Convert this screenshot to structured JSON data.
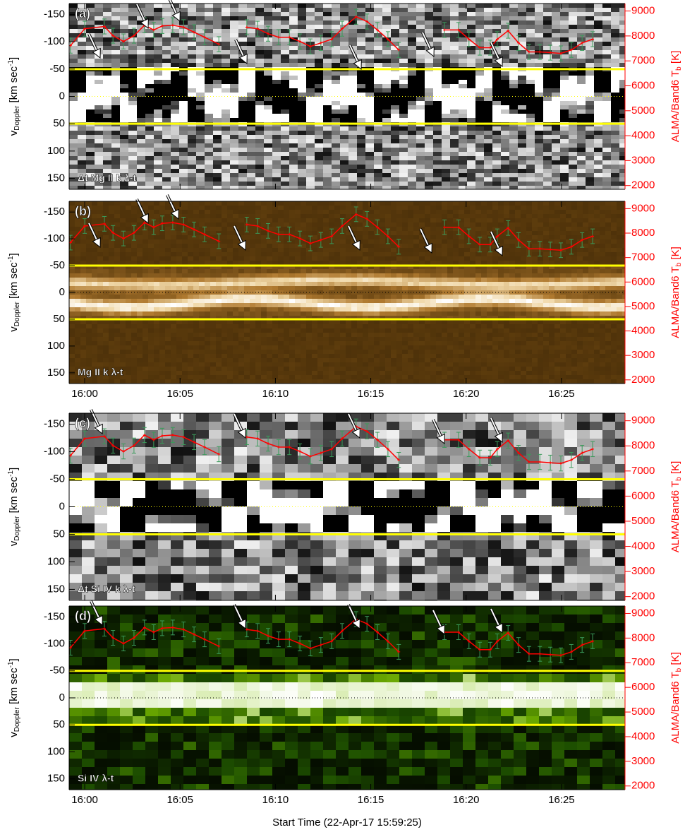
{
  "chart_data": [
    {
      "type": "line",
      "label": "(a)",
      "caption": "Δt Mg II k λ-t",
      "colormap": "gray",
      "ylabel": [
        "v",
        "Doppler",
        " [km sec",
        "-1",
        "]"
      ],
      "y2label": [
        "ALMA/Band6 T",
        "b",
        " [K]"
      ],
      "xlim": [
        -14,
        1735
      ],
      "xticks": [
        35,
        335,
        635,
        935,
        1235,
        1535
      ],
      "ylim": [
        170,
        -170
      ],
      "yticks": [
        -150,
        -100,
        -50,
        0,
        50,
        100,
        150
      ],
      "y2lim": [
        1850,
        9300
      ],
      "y2ticks": [
        2000,
        3000,
        4000,
        5000,
        6000,
        7000,
        8000,
        9000
      ],
      "hlines": [
        -50,
        50
      ],
      "hline_color": "#ffff00",
      "x": [
        -10,
        35,
        97,
        124,
        157,
        190,
        223,
        252,
        279,
        312,
        346,
        379,
        412,
        457,
        500,
        545,
        579,
        612,
        645,
        679,
        712,
        745,
        778,
        812,
        845,
        889,
        923,
        956,
        989,
        1023,
        1100,
        1167,
        1211,
        1244,
        1278,
        1311,
        1333,
        1367,
        1400,
        1433,
        1467,
        1500,
        1533,
        1566,
        1600,
        1633
      ],
      "series": [
        {
          "color": "#ff0000",
          "axis": "y2",
          "error": 300,
          "error_color": "#3a9a5a",
          "values": [
            7610,
            8290,
            8380,
            8010,
            7780,
            8010,
            8430,
            8240,
            8400,
            8430,
            8350,
            8150,
            7950,
            7670,
            null,
            8350,
            8290,
            8090,
            7950,
            7950,
            7780,
            7580,
            7720,
            7870,
            8290,
            8770,
            8580,
            8240,
            7870,
            7440,
            null,
            8240,
            8240,
            7870,
            7530,
            7530,
            7870,
            8210,
            7720,
            7360,
            7360,
            7330,
            7300,
            7440,
            7720,
            7870
          ]
        }
      ]
    },
    {
      "type": "line",
      "label": "(b)",
      "caption": "Mg II k λ-t",
      "colormap": "brown",
      "ylabel": [
        "v",
        "Doppler",
        " [km sec",
        "-1",
        "]"
      ],
      "y2label": [
        "ALMA/Band6 T",
        "b",
        " [K]"
      ],
      "xlim": [
        -14,
        1735
      ],
      "xticks": [
        {
          "value": 35,
          "label": "16:00"
        },
        {
          "value": 335,
          "label": "16:05"
        },
        {
          "value": 635,
          "label": "16:10"
        },
        {
          "value": 935,
          "label": "16:15"
        },
        {
          "value": 1235,
          "label": "16:20"
        },
        {
          "value": 1535,
          "label": "16:25"
        }
      ],
      "ylim": [
        170,
        -170
      ],
      "yticks": [
        -150,
        -100,
        -50,
        0,
        50,
        100,
        150
      ],
      "y2lim": [
        1850,
        9300
      ],
      "y2ticks": [
        2000,
        3000,
        4000,
        5000,
        6000,
        7000,
        8000,
        9000
      ],
      "hlines": [
        -50,
        50
      ],
      "hline_color": "#ffff00",
      "x": [
        -10,
        35,
        97,
        124,
        157,
        190,
        223,
        252,
        279,
        312,
        346,
        379,
        412,
        457,
        500,
        545,
        579,
        612,
        645,
        679,
        712,
        745,
        778,
        812,
        845,
        889,
        923,
        956,
        989,
        1023,
        1100,
        1167,
        1211,
        1244,
        1278,
        1311,
        1333,
        1367,
        1400,
        1433,
        1467,
        1500,
        1533,
        1566,
        1600,
        1633
      ],
      "series": [
        {
          "color": "#ff0000",
          "axis": "y2",
          "error": 300,
          "error_color": "#3a9a5a",
          "values": [
            7610,
            8290,
            8380,
            8010,
            7780,
            8010,
            8430,
            8240,
            8400,
            8430,
            8350,
            8150,
            7950,
            7670,
            null,
            8350,
            8290,
            8090,
            7950,
            7950,
            7780,
            7580,
            7720,
            7870,
            8290,
            8770,
            8580,
            8240,
            7870,
            7440,
            null,
            8240,
            8240,
            7870,
            7530,
            7530,
            7870,
            8210,
            7720,
            7360,
            7360,
            7330,
            7300,
            7440,
            7720,
            7870
          ]
        }
      ]
    },
    {
      "type": "line",
      "label": "(c)",
      "caption": "Δt Si IV k λ-t",
      "colormap": "gray",
      "ylabel": [
        "v",
        "Doppler",
        " [km sec",
        "-1",
        "]"
      ],
      "y2label": [
        "ALMA/Band6 T",
        "b",
        " [K]"
      ],
      "xlim": [
        -14,
        1735
      ],
      "xticks": [
        35,
        335,
        635,
        935,
        1235,
        1535
      ],
      "ylim": [
        170,
        -170
      ],
      "yticks": [
        -150,
        -100,
        -50,
        0,
        50,
        100,
        150
      ],
      "y2lim": [
        1850,
        9300
      ],
      "y2ticks": [
        2000,
        3000,
        4000,
        5000,
        6000,
        7000,
        8000,
        9000
      ],
      "hlines": [
        -50,
        50
      ],
      "hline_color": "#ffff00",
      "x": [
        -10,
        35,
        97,
        124,
        157,
        190,
        223,
        252,
        279,
        312,
        346,
        379,
        412,
        457,
        500,
        545,
        579,
        612,
        645,
        679,
        712,
        745,
        778,
        812,
        845,
        889,
        923,
        956,
        989,
        1023,
        1100,
        1167,
        1211,
        1244,
        1278,
        1311,
        1333,
        1367,
        1400,
        1433,
        1467,
        1500,
        1533,
        1566,
        1600,
        1633
      ],
      "series": [
        {
          "color": "#ff0000",
          "axis": "y2",
          "error": 300,
          "error_color": "#3a9a5a",
          "values": [
            7610,
            8290,
            8380,
            8010,
            7780,
            8010,
            8430,
            8240,
            8400,
            8430,
            8350,
            8150,
            7950,
            7670,
            null,
            8350,
            8290,
            8090,
            7950,
            7950,
            7780,
            7580,
            7720,
            7870,
            8290,
            8770,
            8580,
            8240,
            7870,
            7440,
            null,
            8240,
            8240,
            7870,
            7530,
            7530,
            7870,
            8210,
            7720,
            7360,
            7360,
            7330,
            7300,
            7440,
            7720,
            7870
          ]
        }
      ]
    },
    {
      "type": "line",
      "label": "(d)",
      "caption": "Si IV λ-t",
      "colormap": "green",
      "ylabel": [
        "v",
        "Doppler",
        " [km sec",
        "-1",
        "]"
      ],
      "y2label": [
        "ALMA/Band6 T",
        "b",
        " [K]"
      ],
      "xlabel": "Start Time (22-Apr-17 15:59:25)",
      "xlim": [
        -14,
        1735
      ],
      "xticks": [
        {
          "value": 35,
          "label": "16:00"
        },
        {
          "value": 335,
          "label": "16:05"
        },
        {
          "value": 635,
          "label": "16:10"
        },
        {
          "value": 935,
          "label": "16:15"
        },
        {
          "value": 1235,
          "label": "16:20"
        },
        {
          "value": 1535,
          "label": "16:25"
        }
      ],
      "ylim": [
        170,
        -170
      ],
      "yticks": [
        -150,
        -100,
        -50,
        0,
        50,
        100,
        150
      ],
      "y2lim": [
        1850,
        9300
      ],
      "y2ticks": [
        2000,
        3000,
        4000,
        5000,
        6000,
        7000,
        8000,
        9000
      ],
      "hlines": [
        -50,
        50
      ],
      "hline_color": "#ffff00",
      "x": [
        -10,
        35,
        97,
        124,
        157,
        190,
        223,
        252,
        279,
        312,
        346,
        379,
        412,
        457,
        500,
        545,
        579,
        612,
        645,
        679,
        712,
        745,
        778,
        812,
        845,
        889,
        923,
        956,
        989,
        1023,
        1100,
        1167,
        1211,
        1244,
        1278,
        1311,
        1333,
        1367,
        1400,
        1433,
        1467,
        1500,
        1533,
        1566,
        1600,
        1633
      ],
      "series": [
        {
          "color": "#ff0000",
          "axis": "y2",
          "error": 300,
          "error_color": "#3a9a5a",
          "values": [
            7610,
            8290,
            8380,
            8010,
            7780,
            8010,
            8430,
            8240,
            8400,
            8430,
            8350,
            8150,
            7950,
            7670,
            null,
            8350,
            8290,
            8090,
            7950,
            7950,
            7780,
            7580,
            7720,
            7870,
            8290,
            8770,
            8580,
            8240,
            7870,
            7440,
            null,
            8240,
            8240,
            7870,
            7530,
            7530,
            7870,
            8210,
            7720,
            7360,
            7360,
            7330,
            7300,
            7440,
            7720,
            7870
          ]
        }
      ]
    }
  ]
}
